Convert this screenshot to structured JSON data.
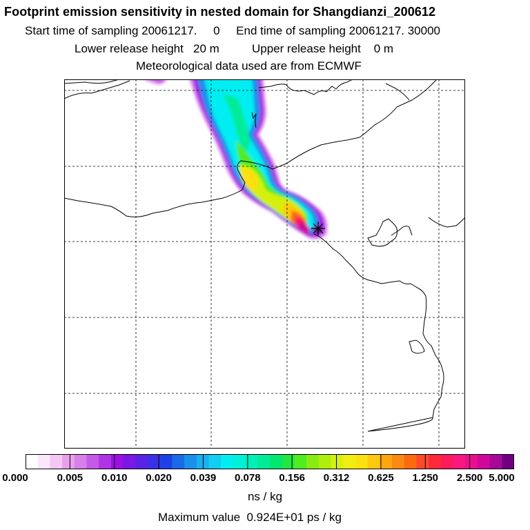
{
  "header": {
    "title": "Footprint emission sensitivity in nested domain for Shangdianzi_200612",
    "time_line": "Start time of sampling 20061217.     0     End time of sampling 20061217. 30000",
    "height_line": "Lower release height   20 m          Upper release height    0 m",
    "met_line": "Meteorological data used are from ECMWF"
  },
  "colorbar": {
    "ticks": [
      "0.000",
      "0.005",
      "0.010",
      "0.020",
      "0.039",
      "0.078",
      "0.156",
      "0.312",
      "0.625",
      "1.250",
      "2.500",
      "5.000"
    ],
    "colors": [
      "#ffffff",
      "#fbe7fb",
      "#f4c6f4",
      "#e9a0ec",
      "#d880ea",
      "#c55ae8",
      "#b033e6",
      "#9a10e6",
      "#7a18e6",
      "#5a22e6",
      "#3a30e6",
      "#1e40e6",
      "#1a6ae8",
      "#1a90ea",
      "#18b0ee",
      "#14cdf2",
      "#00eef2",
      "#00f0d8",
      "#00f0b8",
      "#00ec98",
      "#00e870",
      "#20e840",
      "#50ec20",
      "#88ec10",
      "#b0ee10",
      "#d6f010",
      "#f0ee10",
      "#fde010",
      "#fdc810",
      "#fda610",
      "#fd8a10",
      "#fd6a10",
      "#fd4a2a",
      "#fd2a3a",
      "#fd1a5a",
      "#f8187e",
      "#e8108e",
      "#d0089a",
      "#a80898",
      "#700080"
    ],
    "units": "ns / kg"
  },
  "footer": {
    "max_value": "Maximum value  0.924E+01 ps / kg"
  }
}
